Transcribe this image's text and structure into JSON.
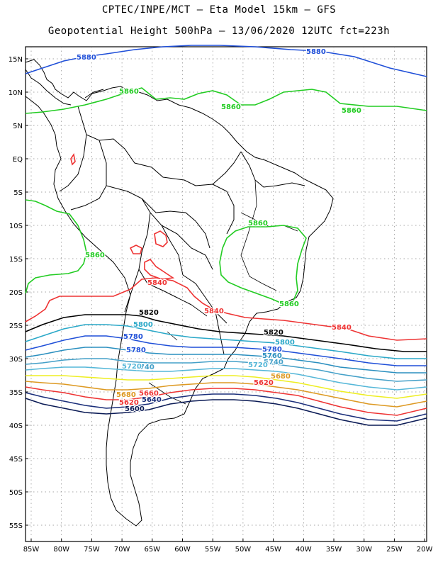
{
  "title": {
    "line1": "CPTEC/INPE/MCT –  Eta Model 15km – GFS",
    "line2": "Geopotential Height 500hPa – 13/06/2020 12UTC fct=223h"
  },
  "map": {
    "lat_labels": [
      "15N",
      "10N",
      "5N",
      "EQ",
      "5S",
      "10S",
      "15S",
      "20S",
      "25S",
      "30S",
      "35S",
      "40S",
      "45S",
      "50S",
      "55S"
    ],
    "lon_labels": [
      "85W",
      "80W",
      "75W",
      "70W",
      "65W",
      "60W",
      "55W",
      "50W",
      "45W",
      "40W",
      "35W",
      "30W",
      "25W",
      "20W"
    ],
    "colors": {
      "c5880": "#1f4fd8",
      "c5860": "#22cc22",
      "c5840": "#ee3333",
      "c5820": "#000000",
      "c5800": "#2aa8c8",
      "c5780": "#1f4fd8",
      "c5760": "#2a8fbf",
      "c5740": "#44a0c8",
      "c5720": "#55b7d8",
      "c5700": "#eeee22",
      "c5680": "#dd9922",
      "c5660": "#ee3333",
      "c5640": "#1a2e7a",
      "c5600": "#0a1a55",
      "coast": "#000000",
      "grid": "#888888"
    },
    "contour_labels": [
      {
        "text": "5880"
      },
      {
        "text": "5880"
      },
      {
        "text": "5860"
      },
      {
        "text": "5860"
      },
      {
        "text": "5860"
      },
      {
        "text": "5860"
      },
      {
        "text": "5860"
      },
      {
        "text": "5860"
      },
      {
        "text": "5840"
      },
      {
        "text": "5840"
      },
      {
        "text": "5840"
      },
      {
        "text": "5820"
      },
      {
        "text": "5820"
      },
      {
        "text": "5800"
      },
      {
        "text": "5800"
      },
      {
        "text": "5780"
      },
      {
        "text": "5780"
      },
      {
        "text": "5780"
      },
      {
        "text": "5760"
      },
      {
        "text": "5740"
      },
      {
        "text": "5740"
      },
      {
        "text": "5720"
      },
      {
        "text": "5720"
      },
      {
        "text": "5680"
      },
      {
        "text": "5680"
      },
      {
        "text": "5660"
      },
      {
        "text": "5640"
      },
      {
        "text": "5600"
      },
      {
        "text": "5620"
      },
      {
        "text": "5620"
      }
    ]
  }
}
